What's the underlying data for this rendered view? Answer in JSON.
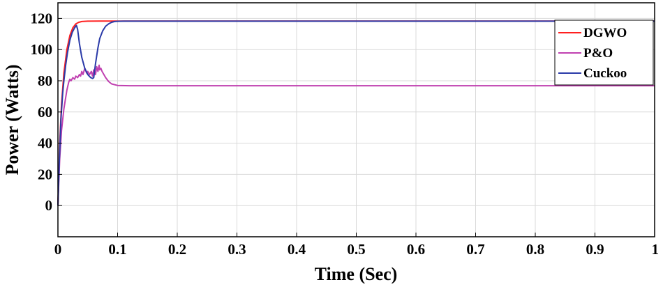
{
  "chart_data": {
    "type": "line",
    "title": "",
    "xlabel": "Time (Sec)",
    "ylabel": "Power (Watts)",
    "xlim": [
      0,
      1
    ],
    "ylim": [
      -20,
      130
    ],
    "grid": true,
    "x_ticks": [
      "0",
      "0.1",
      "0.2",
      "0.3",
      "0.4",
      "0.5",
      "0.6",
      "0.7",
      "0.8",
      "0.9",
      "1"
    ],
    "y_ticks": [
      "0",
      "20",
      "40",
      "60",
      "80",
      "100",
      "120"
    ],
    "x_tick_values": [
      0,
      0.1,
      0.2,
      0.3,
      0.4,
      0.5,
      0.6,
      0.7,
      0.8,
      0.9,
      1
    ],
    "y_tick_values": [
      0,
      20,
      40,
      60,
      80,
      100,
      120
    ],
    "legend_position": "top-right",
    "series": [
      {
        "name": "DGWO",
        "color": "#ff2020",
        "x": [
          0,
          0.003,
          0.006,
          0.01,
          0.015,
          0.02,
          0.025,
          0.03,
          0.035,
          0.04,
          0.05,
          0.07,
          0.1,
          0.2,
          0.4,
          0.6,
          0.8,
          1.0
        ],
        "y": [
          0,
          40,
          65,
          85,
          100,
          109,
          114,
          116.5,
          117.5,
          118,
          118.2,
          118.3,
          118.3,
          118.3,
          118.3,
          118.3,
          118.3,
          118.3
        ]
      },
      {
        "name": "P&O",
        "color": "#c040b0",
        "x": [
          0,
          0.003,
          0.006,
          0.01,
          0.015,
          0.018,
          0.02,
          0.022,
          0.025,
          0.028,
          0.03,
          0.033,
          0.036,
          0.038,
          0.04,
          0.042,
          0.045,
          0.048,
          0.05,
          0.053,
          0.056,
          0.058,
          0.06,
          0.063,
          0.065,
          0.067,
          0.069,
          0.07,
          0.072,
          0.074,
          0.077,
          0.08,
          0.085,
          0.09,
          0.1,
          0.12,
          0.15,
          0.2,
          0.4,
          0.6,
          0.8,
          1.0
        ],
        "y": [
          0,
          30,
          48,
          62,
          74,
          79,
          81,
          80,
          82,
          81,
          83,
          82,
          84,
          83,
          86,
          84,
          88,
          85,
          86,
          84,
          86,
          83,
          87,
          84,
          89,
          86,
          90,
          87,
          88,
          86,
          84,
          82,
          79.5,
          78,
          77,
          76.8,
          76.8,
          76.8,
          76.8,
          76.8,
          76.8,
          76.8
        ]
      },
      {
        "name": "Cuckoo",
        "color": "#2a3aa8",
        "x": [
          0,
          0.002,
          0.005,
          0.008,
          0.01,
          0.013,
          0.016,
          0.02,
          0.024,
          0.028,
          0.031,
          0.033,
          0.036,
          0.04,
          0.045,
          0.05,
          0.055,
          0.058,
          0.06,
          0.063,
          0.067,
          0.07,
          0.075,
          0.08,
          0.085,
          0.09,
          0.095,
          0.1,
          0.11,
          0.2,
          0.4,
          0.6,
          0.8,
          1.0
        ],
        "y": [
          0,
          25,
          55,
          72,
          80,
          90,
          98,
          106,
          111,
          114,
          115.5,
          113,
          104,
          95,
          88,
          84,
          82,
          81.5,
          82,
          91,
          101,
          107,
          112,
          115,
          116.5,
          117.5,
          118,
          118.1,
          118.2,
          118.2,
          118.2,
          118.2,
          118.2,
          118.2
        ]
      }
    ]
  }
}
